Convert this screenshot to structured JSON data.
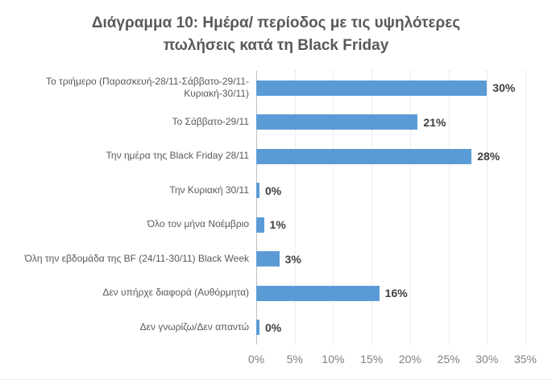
{
  "chart_data": {
    "type": "bar",
    "orientation": "horizontal",
    "title": "Διάγραμμα 10: Ημέρα/ περίοδος με τις υψηλότερες πωλήσεις κατά τη Black Friday",
    "categories": [
      "Το τριήμερο (Παρασκευή-28/11-Σάββατο-29/11-Κυριακή-30/11)",
      "Το Σάββατο-29/11",
      "Την ημέρα της Black Friday 28/11",
      "Την Κυριακή 30/11",
      "Όλο τον μήνα Νοέμβριο",
      "Όλη την εβδομάδα της BF (24/11-30/11) Black Week",
      "Δεν υπήρχε διαφορά (Αυθόρμητα)",
      "Δεν γνωρίζω/Δεν απαντώ"
    ],
    "values": [
      30,
      21,
      28,
      0,
      1,
      3,
      16,
      0
    ],
    "data_labels": [
      "30%",
      "21%",
      "28%",
      "0%",
      "1%",
      "3%",
      "16%",
      "0%"
    ],
    "x_ticks_percent": [
      0,
      5,
      10,
      15,
      20,
      25,
      30,
      35
    ],
    "x_tick_labels": [
      "0%",
      "5%",
      "10%",
      "15%",
      "20%",
      "25%",
      "30%",
      "35%"
    ],
    "xlim": [
      0,
      35
    ],
    "grid": true,
    "legend": false,
    "colors": {
      "bar": "#5b9bd5",
      "title_text": "#595959",
      "category_text": "#595959",
      "data_label_text": "#404040",
      "tick_text": "#7f7f7f",
      "gridline": "#d9d9d9",
      "axis_line": "#bfbfbf"
    }
  }
}
